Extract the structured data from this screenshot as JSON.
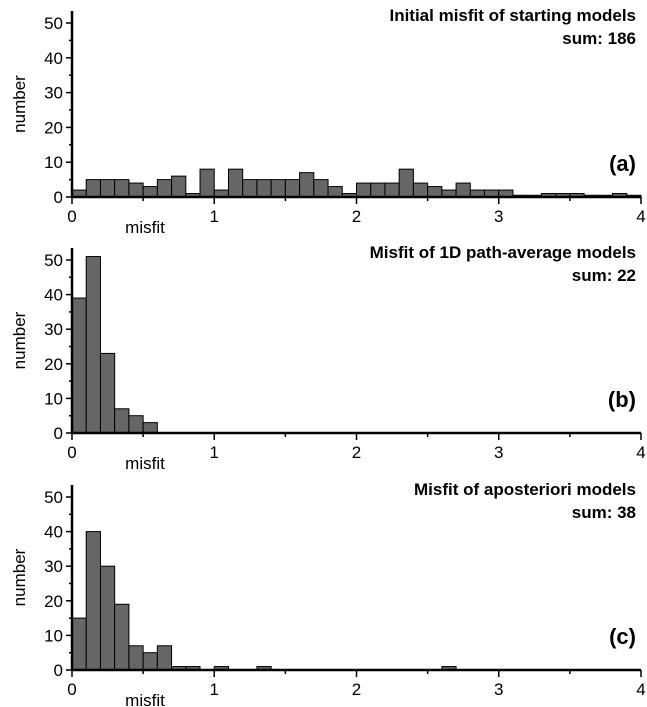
{
  "chart_data": [
    {
      "type": "bar",
      "panel_label": "(a)",
      "title": "Initial misfit of starting models",
      "subtitle": "sum: 186",
      "xlabel": "misfit",
      "ylabel": "number",
      "xlim": [
        0,
        4
      ],
      "ylim": [
        0,
        50
      ],
      "xticks": [
        "0",
        "1",
        "2",
        "3",
        "4"
      ],
      "yticks": [
        "0",
        "10",
        "20",
        "30",
        "40",
        "50"
      ],
      "bin_width": 0.1,
      "values": [
        2,
        5,
        5,
        5,
        4,
        3,
        5,
        6,
        1,
        8,
        2,
        8,
        5,
        5,
        5,
        5,
        7,
        5,
        3,
        1,
        4,
        4,
        4,
        8,
        4,
        3,
        2,
        4,
        2,
        2,
        2,
        0.5,
        0.5,
        1,
        1,
        1,
        0.5,
        0.5,
        1,
        0.5
      ]
    },
    {
      "type": "bar",
      "panel_label": "(b)",
      "title": "Misfit of 1D path-average models",
      "subtitle": "sum: 22",
      "xlabel": "misfit",
      "ylabel": "number",
      "xlim": [
        0,
        4
      ],
      "ylim": [
        0,
        50
      ],
      "xticks": [
        "0",
        "1",
        "2",
        "3",
        "4"
      ],
      "yticks": [
        "0",
        "10",
        "20",
        "30",
        "40",
        "50"
      ],
      "bin_width": 0.1,
      "values": [
        39,
        51,
        23,
        7,
        5,
        3,
        0,
        0,
        0,
        0,
        0,
        0,
        0,
        0,
        0,
        0,
        0,
        0,
        0,
        0,
        0,
        0,
        0,
        0,
        0,
        0,
        0,
        0,
        0,
        0,
        0,
        0,
        0,
        0,
        0,
        0,
        0,
        0,
        0,
        0
      ]
    },
    {
      "type": "bar",
      "panel_label": "(c)",
      "title": "Misfit of aposteriori models",
      "subtitle": "sum: 38",
      "xlabel": "misfit",
      "ylabel": "number",
      "xlim": [
        0,
        4
      ],
      "ylim": [
        0,
        50
      ],
      "xticks": [
        "0",
        "1",
        "2",
        "3",
        "4"
      ],
      "yticks": [
        "0",
        "10",
        "20",
        "30",
        "40",
        "50"
      ],
      "bin_width": 0.1,
      "values": [
        15,
        40,
        30,
        19,
        7,
        5,
        7,
        1,
        1,
        0,
        1,
        0,
        0,
        1,
        0,
        0,
        0,
        0,
        0,
        0,
        0,
        0,
        0,
        0,
        0,
        0,
        1,
        0,
        0,
        0,
        0,
        0,
        0,
        0,
        0,
        0,
        0,
        0,
        0,
        0
      ]
    }
  ],
  "colors": {
    "bar_fill": "#666666",
    "bar_stroke": "#000000",
    "axis": "#000000"
  }
}
